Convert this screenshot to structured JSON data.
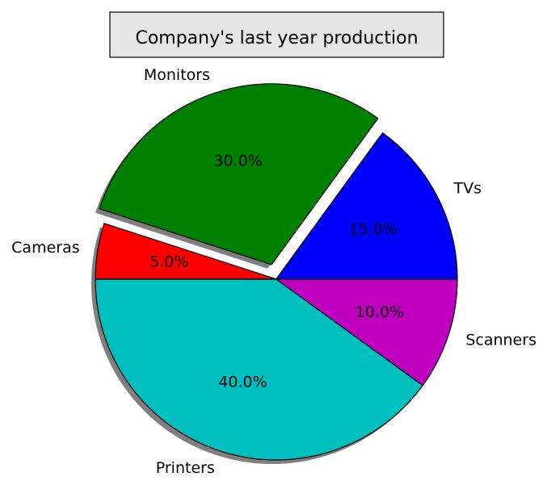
{
  "chart_data": {
    "type": "pie",
    "title": "Company's last year production",
    "categories": [
      "TVs",
      "Monitors",
      "Cameras",
      "Printers",
      "Scanners"
    ],
    "values": [
      15,
      30,
      5,
      40,
      10
    ],
    "value_labels": [
      "15.0%",
      "30.0%",
      "5.0%",
      "40.0%",
      "10.0%"
    ],
    "colors": [
      "#0000ff",
      "#008000",
      "#ff0000",
      "#00bfbf",
      "#bf00bf"
    ],
    "exploded": [
      "Monitors"
    ],
    "start_angle_deg": 0,
    "direction": "counterclockwise",
    "shadow": true,
    "title_box": {
      "background": "#e5e5e5",
      "border": "#000000"
    }
  }
}
